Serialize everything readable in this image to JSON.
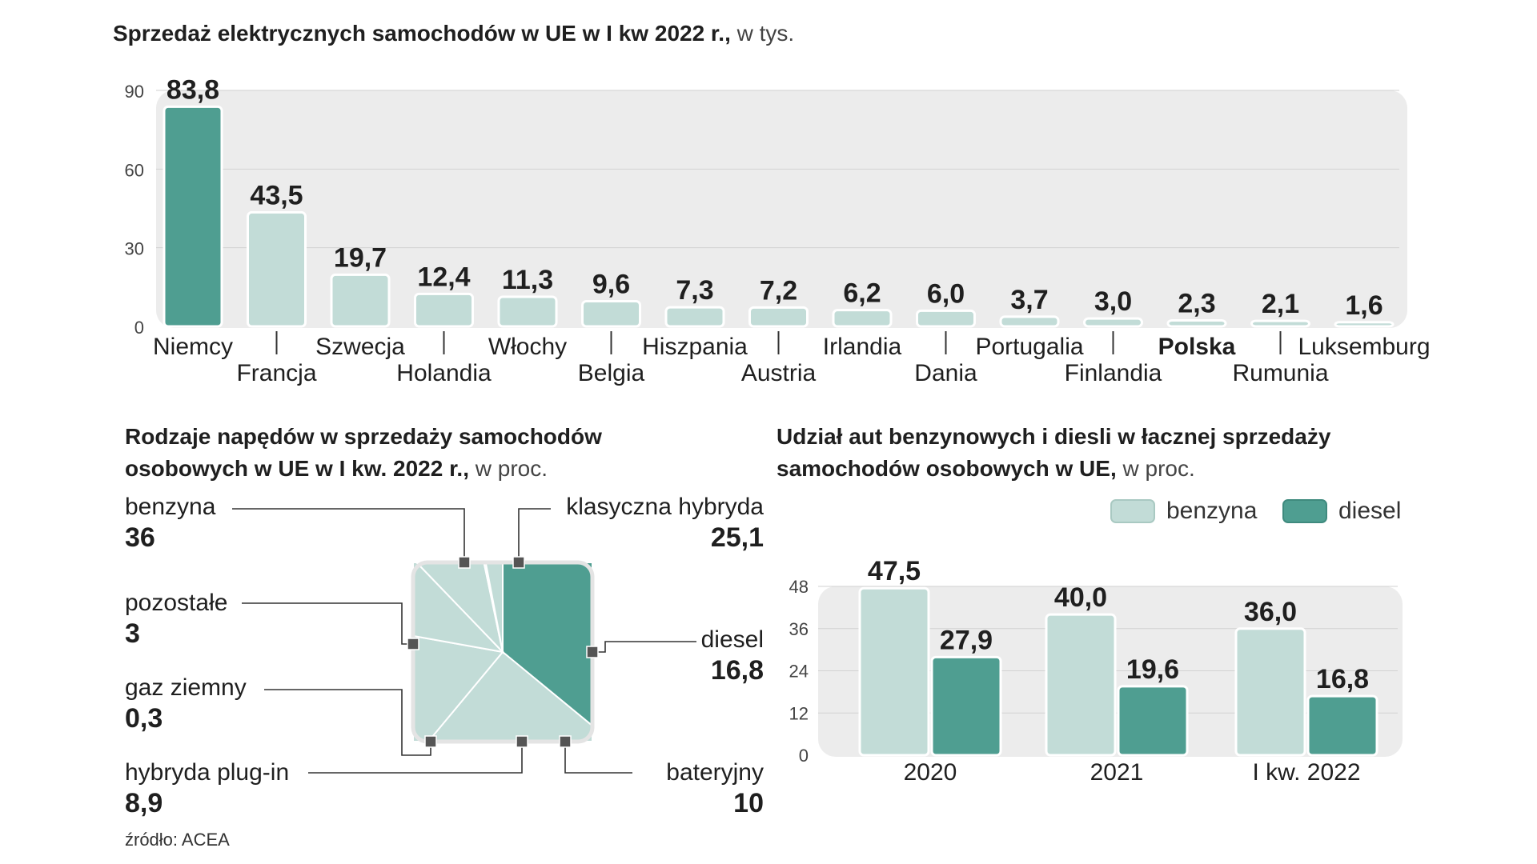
{
  "chart_data": [
    {
      "type": "bar",
      "title": "Sprzedaż elektrycznych samochodów w UE w I kw 2022 r.,",
      "unit": "w tys.",
      "categories": [
        "Niemcy",
        "Francja",
        "Szwecja",
        "Holandia",
        "Włochy",
        "Belgia",
        "Hiszpania",
        "Austria",
        "Irlandia",
        "Dania",
        "Portugalia",
        "Finlandia",
        "Polska",
        "Rumunia",
        "Luksemburg"
      ],
      "values": [
        83.8,
        43.5,
        19.7,
        12.4,
        11.3,
        9.6,
        7.3,
        7.2,
        6.2,
        6.0,
        3.7,
        3.0,
        2.3,
        2.1,
        1.6
      ],
      "value_labels": [
        "83,8",
        "43,5",
        "19,7",
        "12,4",
        "11,3",
        "9,6",
        "7,3",
        "7,2",
        "6,2",
        "6,0",
        "3,7",
        "3,0",
        "2,3",
        "2,1",
        "1,6"
      ],
      "highlight": "Polska",
      "yticks": [
        0,
        30,
        60,
        90
      ],
      "ylim": [
        0,
        90
      ],
      "colors": {
        "primary": "#4f9e91",
        "secondary": "#c2dcd7",
        "plot_bg": "#ececec"
      }
    },
    {
      "type": "pie",
      "title": "Rodzaje napędów w sprzedaży samochodów osobowych w UE w I kw. 2022 r.,",
      "unit": "w proc.",
      "slices": [
        {
          "label": "benzyna",
          "value": 36,
          "value_label": "36"
        },
        {
          "label": "klasyczna hybryda",
          "value": 25.1,
          "value_label": "25,1"
        },
        {
          "label": "diesel",
          "value": 16.8,
          "value_label": "16,8"
        },
        {
          "label": "bateryjny",
          "value": 10,
          "value_label": "10"
        },
        {
          "label": "hybryda plug-in",
          "value": 8.9,
          "value_label": "8,9"
        },
        {
          "label": "gaz ziemny",
          "value": 0.3,
          "value_label": "0,3"
        },
        {
          "label": "pozostałe",
          "value": 3,
          "value_label": "3"
        }
      ],
      "colors": {
        "pozostale": "#4f9e91",
        "inne": "#c2dcd7"
      }
    },
    {
      "type": "bar",
      "title": "Udział aut benzynowych i diesli w łacznej sprzedaży samochodów osobowych w UE,",
      "unit": "w proc.",
      "categories": [
        "2020",
        "2021",
        "I kw. 2022"
      ],
      "series": [
        {
          "name": "benzyna",
          "values": [
            47.5,
            40.0,
            36.0
          ],
          "value_labels": [
            "47,5",
            "40,0",
            "36,0"
          ],
          "color": "#c2dcd7"
        },
        {
          "name": "diesel",
          "values": [
            27.9,
            19.6,
            16.8
          ],
          "value_labels": [
            "27,9",
            "19,6",
            "16,8"
          ],
          "color": "#4f9e91"
        }
      ],
      "yticks": [
        0,
        12,
        24,
        36,
        48
      ],
      "ylim": [
        0,
        48
      ]
    }
  ],
  "source": "źródło: ACEA"
}
